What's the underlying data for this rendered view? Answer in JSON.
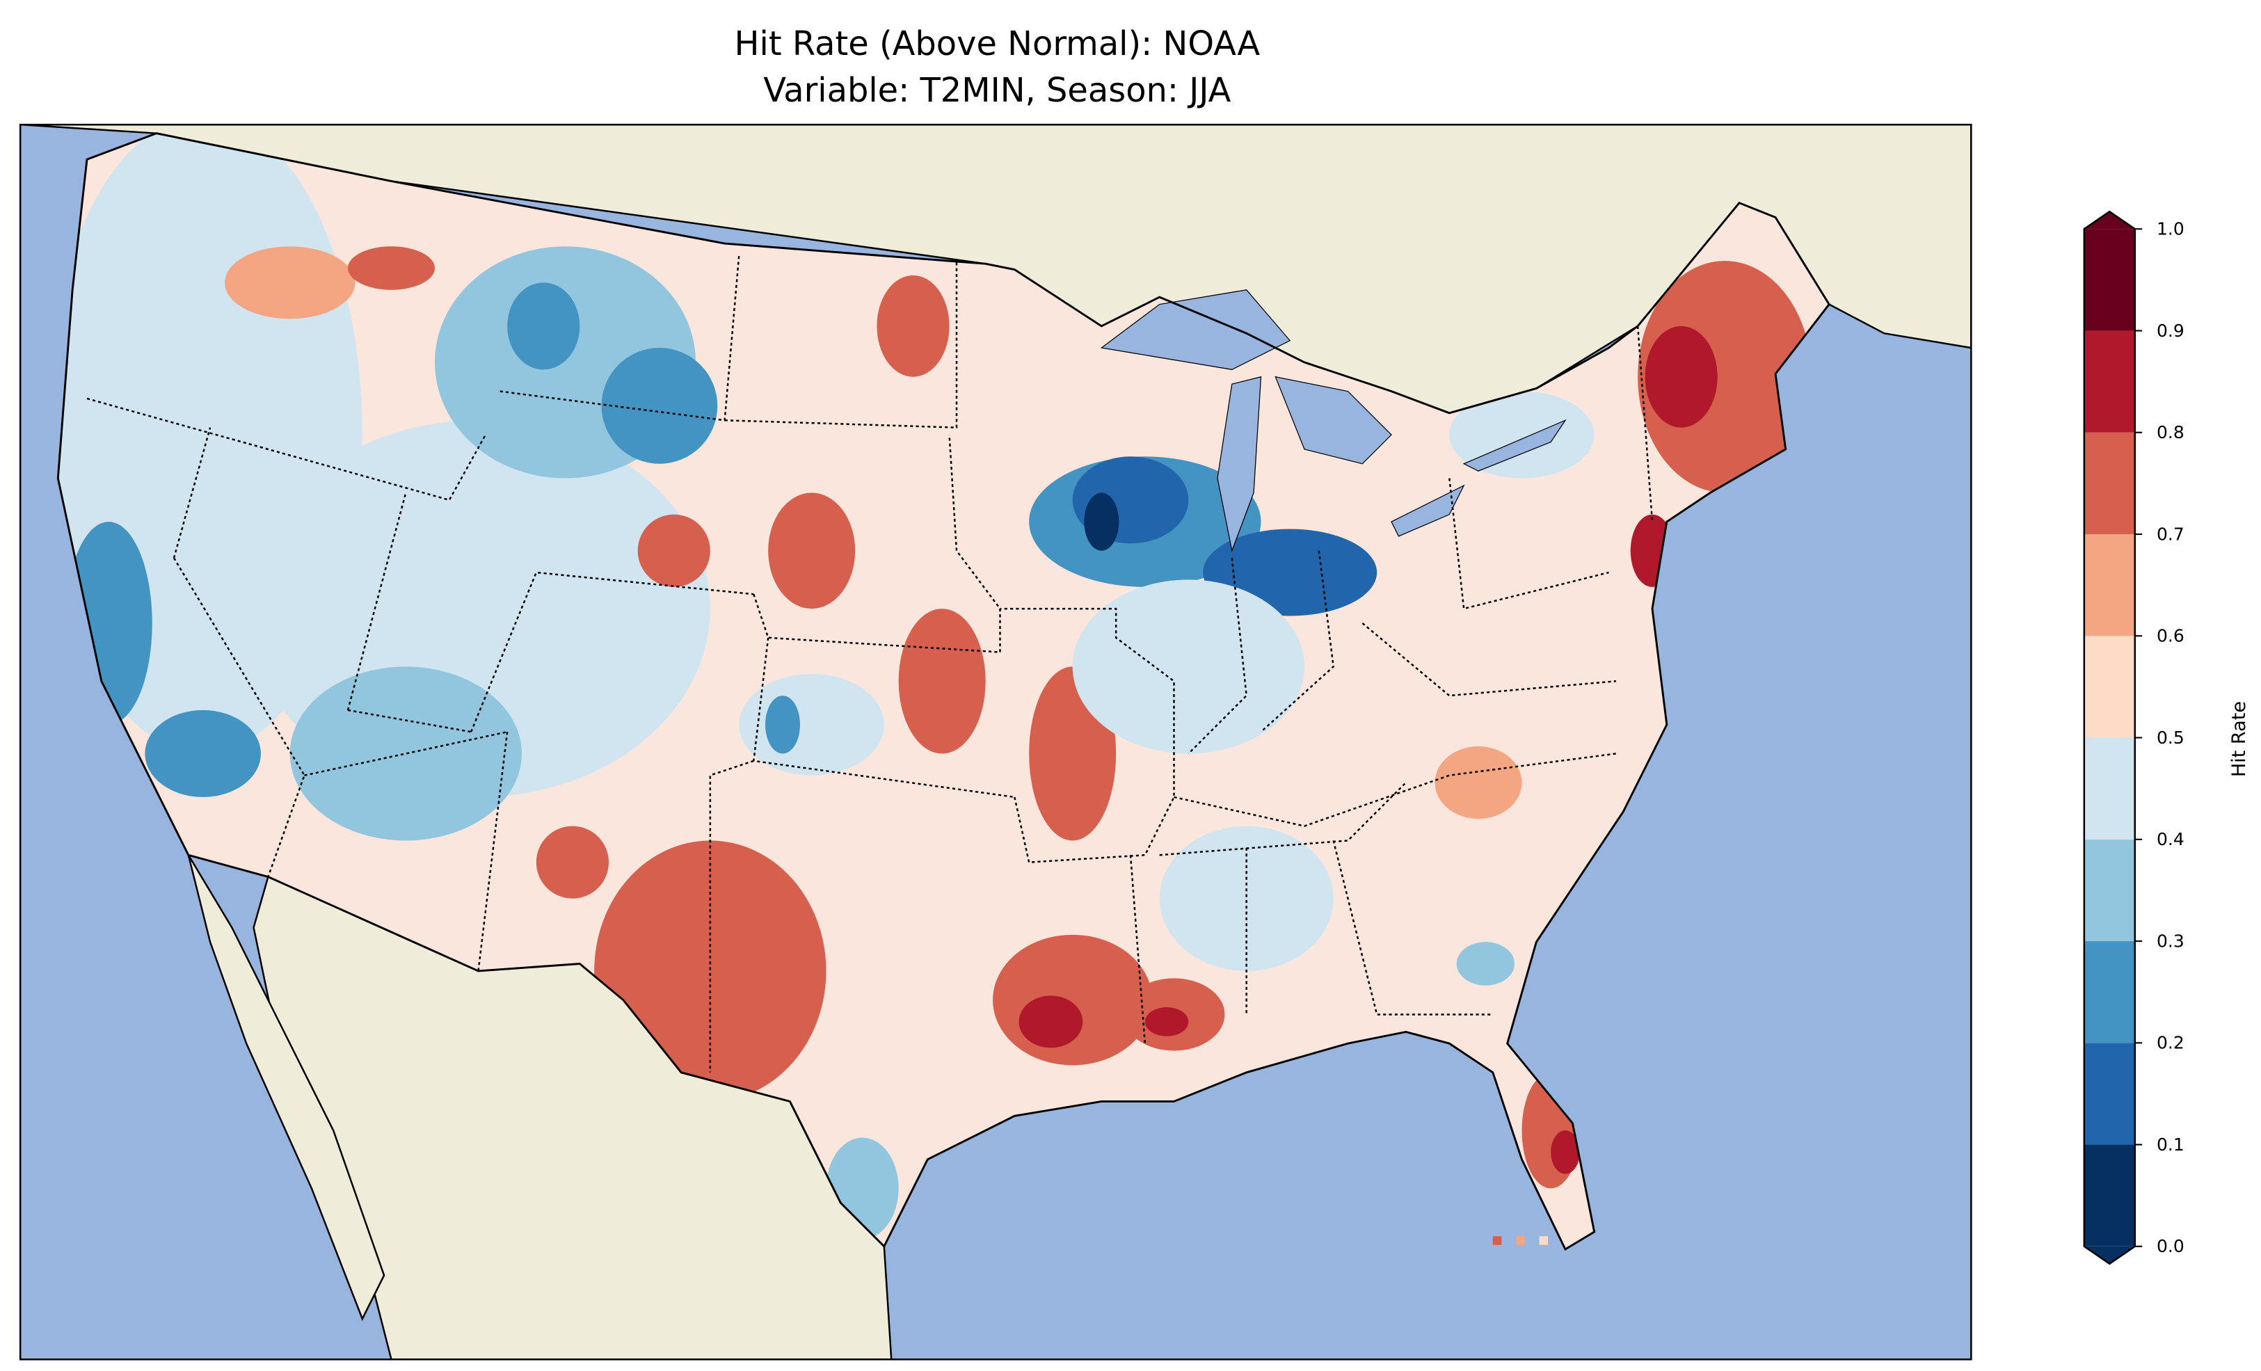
{
  "chart_data": {
    "type": "heatmap",
    "title_line1": "Hit Rate (Above Normal): NOAA",
    "title_line2": "Variable: T2MIN, Season: JJA",
    "colorbar": {
      "label": "Hit Rate",
      "range": [
        0.0,
        1.0
      ],
      "extend": "both",
      "ticks": [
        "0.0",
        "0.1",
        "0.2",
        "0.3",
        "0.4",
        "0.5",
        "0.6",
        "0.7",
        "0.8",
        "0.9",
        "1.0"
      ],
      "levels": [
        0,
        0.1,
        0.2,
        0.3,
        0.4,
        0.5,
        0.6,
        0.7,
        0.8,
        0.9,
        1.0
      ],
      "colors": [
        "#053061",
        "#2166ac",
        "#4393c3",
        "#92c5de",
        "#d1e5f0",
        "#fddbc7",
        "#f4a582",
        "#d6604d",
        "#b2182b",
        "#67001f"
      ]
    },
    "map": {
      "region": "Contiguous United States",
      "ocean_color": "#98b5e0",
      "land_color": "#efedda"
    }
  }
}
